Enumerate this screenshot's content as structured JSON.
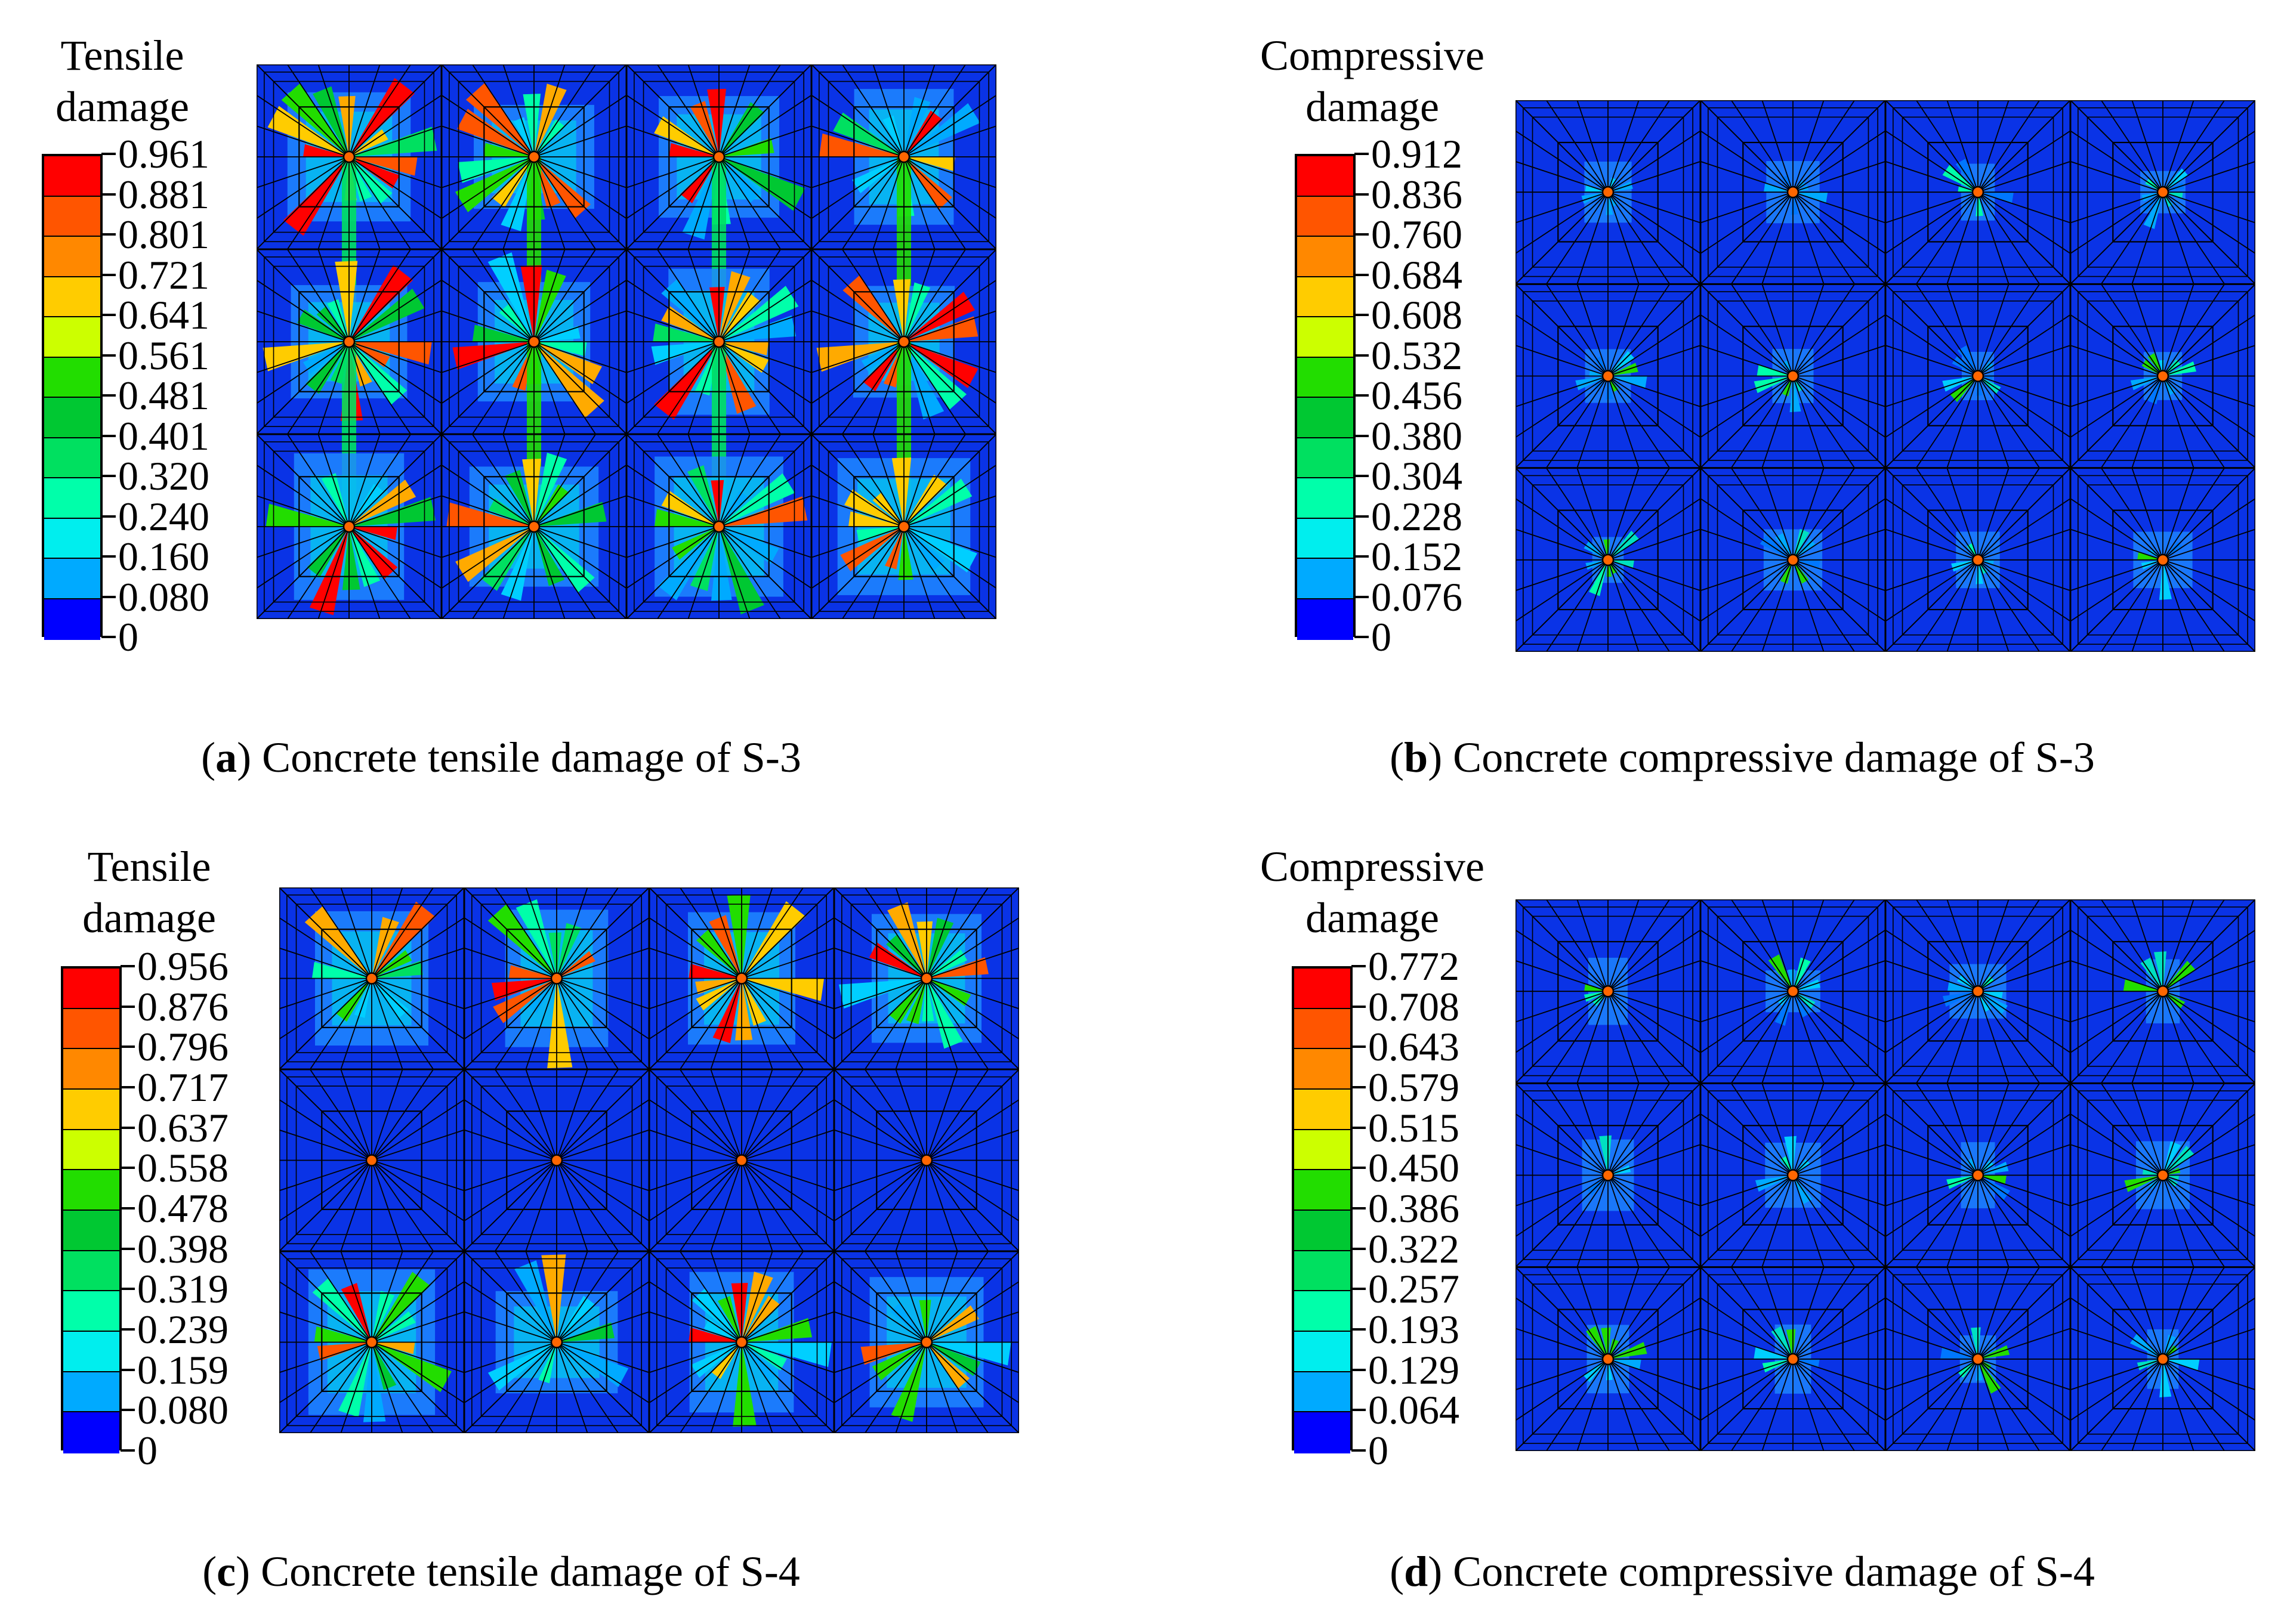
{
  "colors": [
    "#0000ff",
    "#0055ff",
    "#00aaff",
    "#00eeee",
    "#00ffaa",
    "#00e060",
    "#00c832",
    "#22dd00",
    "#ccff00",
    "#ffcc00",
    "#ff8800",
    "#ff5500",
    "#ff0000"
  ],
  "mesh_color": "#0a33e6",
  "panels": [
    {
      "id": "a",
      "legend_title_line1": "Tensile",
      "legend_title_line2": "damage",
      "legend_values": [
        "0.961",
        "0.881",
        "0.801",
        "0.721",
        "0.641",
        "0.561",
        "0.481",
        "0.401",
        "0.320",
        "0.240",
        "0.160",
        "0.080",
        "0"
      ],
      "caption_letter": "a",
      "caption_text": ") Concrete tensile damage of S-3",
      "damage_type": "tensile"
    },
    {
      "id": "b",
      "legend_title_line1": "Compressive",
      "legend_title_line2": "damage",
      "legend_values": [
        "0.912",
        "0.836",
        "0.760",
        "0.684",
        "0.608",
        "0.532",
        "0.456",
        "0.380",
        "0.304",
        "0.228",
        "0.152",
        "0.076",
        "0"
      ],
      "caption_letter": "b",
      "caption_text": ") Concrete compressive damage of S-3",
      "damage_type": "compressive"
    },
    {
      "id": "c",
      "legend_title_line1": "Tensile",
      "legend_title_line2": "damage",
      "legend_values": [
        "0.956",
        "0.876",
        "0.796",
        "0.717",
        "0.637",
        "0.558",
        "0.478",
        "0.398",
        "0.319",
        "0.239",
        "0.159",
        "0.080",
        "0"
      ],
      "caption_letter": "c",
      "caption_text": ") Concrete tensile damage of S-4",
      "damage_type": "tensile-middle-undamaged"
    },
    {
      "id": "d",
      "legend_title_line1": "Compressive",
      "legend_title_line2": "damage",
      "legend_values": [
        "0.772",
        "0.708",
        "0.643",
        "0.579",
        "0.515",
        "0.450",
        "0.386",
        "0.322",
        "0.257",
        "0.193",
        "0.129",
        "0.064",
        "0"
      ],
      "caption_letter": "d",
      "caption_text": ") Concrete compressive damage of S-4",
      "damage_type": "compressive"
    }
  ]
}
